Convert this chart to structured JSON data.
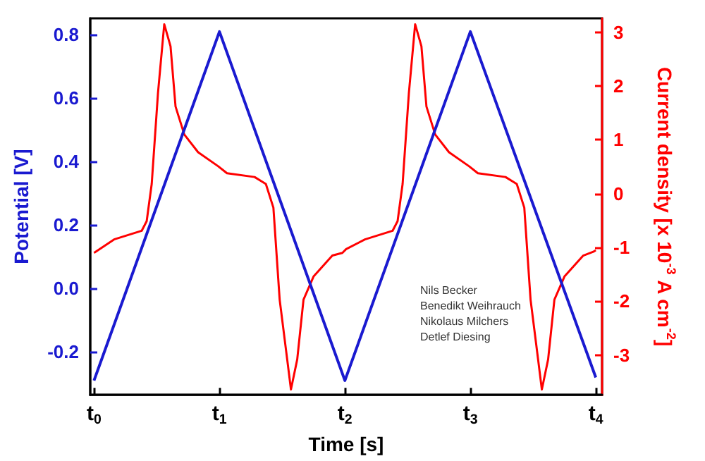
{
  "chart_data": {
    "type": "line",
    "xlabel": "Time [s]",
    "ylabel": "Potential [V]",
    "y2label": "Current density [x 10$^{-3}$ A cm$^{-2}$]",
    "xlim": [
      -0.03,
      4.05
    ],
    "xticks": [
      {
        "value": 0,
        "label": "t$_{0}$"
      },
      {
        "value": 1,
        "label": "t$_{1}$"
      },
      {
        "value": 2,
        "label": "t$_{2}$"
      },
      {
        "value": 3,
        "label": "t$_{3}$"
      },
      {
        "value": 4,
        "label": "t$_{4}$"
      }
    ],
    "ylim": [
      -0.335,
      0.852
    ],
    "yticks": [
      -0.2,
      {
        "value": 0,
        "label": "0.0"
      },
      0.2,
      0.4,
      0.6,
      0.8
    ],
    "y2lim": [
      -3.74,
      3.26
    ],
    "y2ticks": [
      -3,
      -2,
      -1,
      0,
      1,
      2,
      3
    ],
    "grid": false,
    "marker": "none",
    "line_style": "solid",
    "series": [
      {
        "color": "#1a1ad0",
        "x": [
          0,
          1,
          2,
          3,
          4
        ],
        "values": [
          -0.29,
          0.81,
          -0.29,
          0.81,
          -0.28
        ]
      },
      {
        "color": "#ff0000",
        "axis": "y2",
        "x": [
          0,
          0.16,
          0.38,
          0.42,
          0.46,
          0.51,
          0.56,
          0.61,
          0.65,
          0.72,
          0.83,
          0.99,
          1.06,
          1.28,
          1.37,
          1.43,
          1.48,
          1.54,
          1.57,
          1.62,
          1.67,
          1.75,
          1.9,
          1.98,
          2.01,
          2.16,
          2.38,
          2.42,
          2.46,
          2.51,
          2.56,
          2.61,
          2.65,
          2.72,
          2.83,
          2.99,
          3.06,
          3.28,
          3.37,
          3.43,
          3.48,
          3.54,
          3.57,
          3.62,
          3.67,
          3.75,
          3.9,
          3.98,
          4.0
        ],
        "values": [
          -1.1,
          -0.85,
          -0.69,
          -0.51,
          0.18,
          1.87,
          3.15,
          2.74,
          1.62,
          1.1,
          0.77,
          0.51,
          0.38,
          0.31,
          0.18,
          -0.26,
          -1.97,
          -3.08,
          -3.64,
          -3.08,
          -1.97,
          -1.54,
          -1.15,
          -1.1,
          -1.03,
          -0.85,
          -0.69,
          -0.51,
          0.18,
          1.87,
          3.15,
          2.74,
          1.62,
          1.1,
          0.77,
          0.51,
          0.38,
          0.31,
          0.18,
          -0.26,
          -1.97,
          -3.08,
          -3.64,
          -3.08,
          -1.97,
          -1.54,
          -1.15,
          -1.08,
          -1.05
        ]
      }
    ],
    "annotations": [
      "Nils Becker",
      "Benedikt Weihrauch",
      "Nikolaus Milchers",
      "Detlef Diesing"
    ]
  }
}
